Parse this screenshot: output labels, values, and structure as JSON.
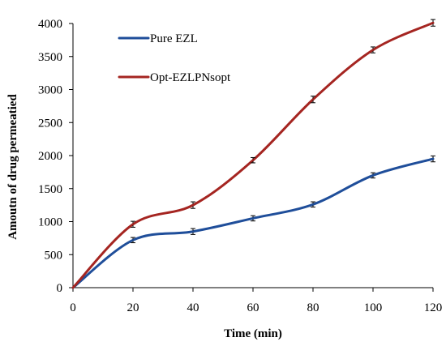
{
  "chart_data": {
    "type": "line",
    "title": "",
    "xlabel": "Time (min)",
    "ylabel": "Amoutn  of drug permeatied",
    "x": [
      0,
      20,
      40,
      60,
      80,
      100,
      120
    ],
    "xlim": [
      0,
      120
    ],
    "ylim": [
      0,
      4000
    ],
    "x_ticks": [
      "0",
      "20",
      "40",
      "60",
      "80",
      "100",
      "120"
    ],
    "y_ticks": [
      "0",
      "500",
      "1000",
      "1500",
      "2000",
      "2500",
      "3000",
      "3500",
      "4000"
    ],
    "grid": false,
    "legend_position": "top-left",
    "error_bars": true,
    "series": [
      {
        "name": "Pure EZL",
        "color": "#1f4e9a",
        "values": [
          0,
          720,
          850,
          1050,
          1260,
          1700,
          1950
        ],
        "errors": [
          0,
          40,
          45,
          40,
          40,
          40,
          45
        ]
      },
      {
        "name": "Opt-EZLPNsopt",
        "color": "#a52521",
        "values": [
          0,
          960,
          1250,
          1930,
          2850,
          3600,
          4010
        ],
        "errors": [
          0,
          45,
          50,
          40,
          50,
          45,
          50
        ]
      }
    ]
  }
}
